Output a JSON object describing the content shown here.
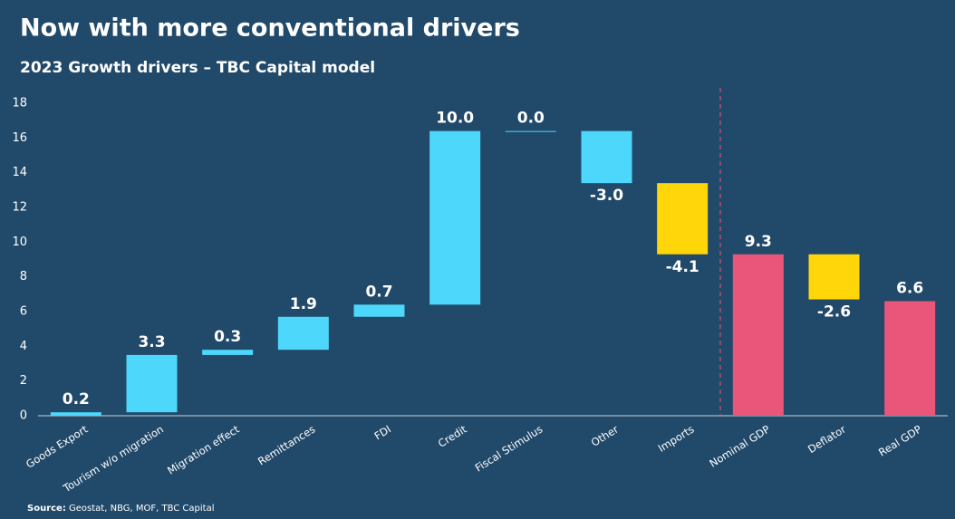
{
  "chart_data": {
    "type": "waterfall",
    "title": "Now with more conventional drivers",
    "subtitle": "2023 Growth drivers – TBC Capital model",
    "source_label": "Source:",
    "source": "Geostat, NBG, MOF, TBC Capital",
    "categories": [
      "Goods Export",
      "Tourism w/o migration",
      "Migration effect",
      "Remittances",
      "FDI",
      "Credit",
      "Fiscal Stimulus",
      "Other",
      "Imports",
      "Nominal GDP",
      "Deflator",
      "Real GDP"
    ],
    "values": [
      0.2,
      3.3,
      0.3,
      1.9,
      0.7,
      10.0,
      0.0,
      -3.0,
      -4.1,
      9.3,
      -2.6,
      6.6
    ],
    "value_labels": [
      "0.2",
      "3.3",
      "0.3",
      "1.9",
      "0.7",
      "10.0",
      "0.0",
      "-3.0",
      "-4.1",
      "9.3",
      "-2.6",
      "6.6"
    ],
    "is_total": [
      false,
      false,
      false,
      false,
      false,
      false,
      false,
      false,
      false,
      true,
      false,
      true
    ],
    "colors": [
      "#4dd8fb",
      "#4dd8fb",
      "#4dd8fb",
      "#4dd8fb",
      "#4dd8fb",
      "#4dd8fb",
      "#4dd8fb",
      "#4dd8fb",
      "#ffd60a",
      "#e9567a",
      "#ffd60a",
      "#e9567a"
    ],
    "ylim": [
      0,
      18
    ],
    "yticks": [
      0,
      2,
      4,
      6,
      8,
      10,
      12,
      14,
      16,
      18
    ],
    "grid": false
  }
}
